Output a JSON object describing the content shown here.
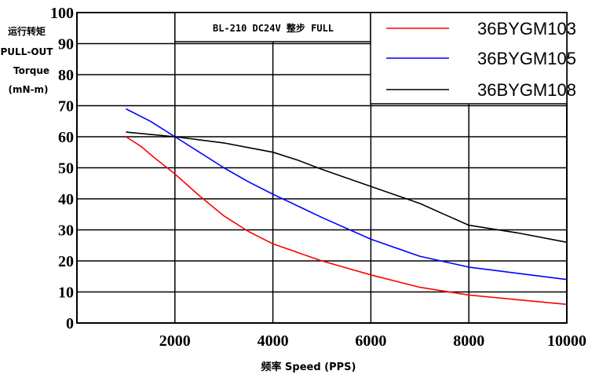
{
  "chart_data": {
    "type": "line",
    "title": "BL-210 DC24V 整步 FULL",
    "ylabel_lines": [
      "运行转矩",
      "PULL-OUT",
      "Torque",
      "(mN-m)"
    ],
    "xlabel": "频率 Speed (PPS)",
    "xlim": [
      0,
      10000
    ],
    "ylim": [
      0,
      100
    ],
    "xticks": [
      2000,
      4000,
      6000,
      8000,
      10000
    ],
    "yticks": [
      0,
      10,
      20,
      30,
      40,
      50,
      60,
      70,
      80,
      90,
      100
    ],
    "grid": true,
    "legend_position": "top-right",
    "series": [
      {
        "name": "36BYGM103",
        "color": "#ff0000",
        "x": [
          1000,
          1300,
          1600,
          2000,
          2500,
          3000,
          3500,
          4000,
          5000,
          6000,
          7000,
          8000,
          9000,
          10000
        ],
        "y": [
          60,
          57,
          53,
          48,
          41,
          34.5,
          29.5,
          25.5,
          20,
          15.5,
          11.5,
          9,
          7.5,
          6
        ]
      },
      {
        "name": "36BYGM105",
        "color": "#0000ff",
        "x": [
          1000,
          1500,
          2000,
          2500,
          3000,
          3500,
          4000,
          5000,
          6000,
          7000,
          8000,
          9000,
          10000
        ],
        "y": [
          69,
          65,
          60,
          55,
          50,
          45.5,
          41.5,
          34,
          27,
          21.5,
          18,
          16,
          14
        ]
      },
      {
        "name": "36BYGM108",
        "color": "#000000",
        "x": [
          1000,
          2000,
          3000,
          3500,
          4000,
          4500,
          5000,
          6000,
          7000,
          7500,
          8000,
          9000,
          10000
        ],
        "y": [
          61.5,
          60,
          58,
          56.5,
          55,
          52.5,
          49.5,
          44,
          38.5,
          35,
          31.5,
          29,
          26
        ]
      }
    ]
  }
}
